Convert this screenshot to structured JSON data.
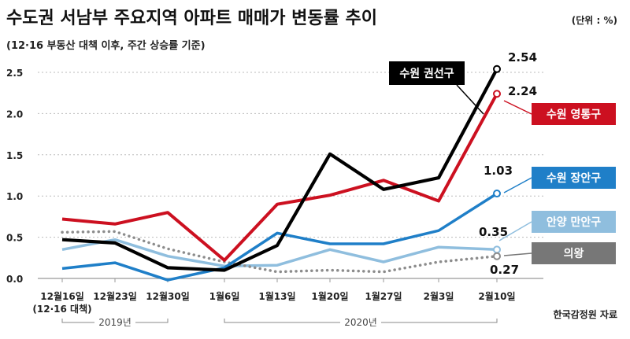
{
  "colors": {
    "suwon_gwonseon": "#000000",
    "suwon_yeongtong": "#cc1020",
    "suwon_jangan": "#1f7fc8",
    "anyang_manan": "#8fbede",
    "uiwang": "#8c8c8c",
    "tag_uiwang_bg": "#777777"
  },
  "chart_data": {
    "type": "line",
    "title": "수도권 서남부 주요지역 아파트 매매가 변동률 추이",
    "subtitle": "(12·16 부동산 대책 이후, 주간 상승률 기준)",
    "unit": "(단위 : %)",
    "source": "한국감정원 자료",
    "categories": [
      "12월16일",
      "12월23일",
      "12월30일",
      "1월6일",
      "1월13일",
      "1월20일",
      "1월27일",
      "2월3일",
      "2월10일"
    ],
    "first_category_note": "(12·16 대책)",
    "year_groups": [
      "2019년",
      "2020년"
    ],
    "ylim": [
      0,
      2.5
    ],
    "yticks": [
      "0.0",
      "0.5",
      "1.0",
      "1.5",
      "2.0",
      "2.5"
    ],
    "grid": true,
    "series": [
      {
        "name": "수원 권선구",
        "values": [
          0.47,
          0.43,
          0.13,
          0.1,
          0.4,
          1.51,
          1.08,
          1.22,
          2.54
        ],
        "end_label": "2.54"
      },
      {
        "name": "수원 영통구",
        "values": [
          0.72,
          0.66,
          0.8,
          0.22,
          0.9,
          1.01,
          1.19,
          0.94,
          2.24
        ],
        "end_label": "2.24"
      },
      {
        "name": "수원 장안구",
        "values": [
          0.12,
          0.19,
          -0.02,
          0.13,
          0.55,
          0.42,
          0.42,
          0.58,
          1.03
        ],
        "end_label": "1.03"
      },
      {
        "name": "안양 만안구",
        "values": [
          0.35,
          0.47,
          0.27,
          0.15,
          0.16,
          0.35,
          0.2,
          0.38,
          0.35
        ],
        "end_label": "0.35"
      },
      {
        "name": "의왕",
        "values": [
          0.56,
          0.57,
          0.36,
          0.2,
          0.08,
          0.1,
          0.08,
          0.2,
          0.27
        ],
        "end_label": "0.27"
      }
    ]
  }
}
